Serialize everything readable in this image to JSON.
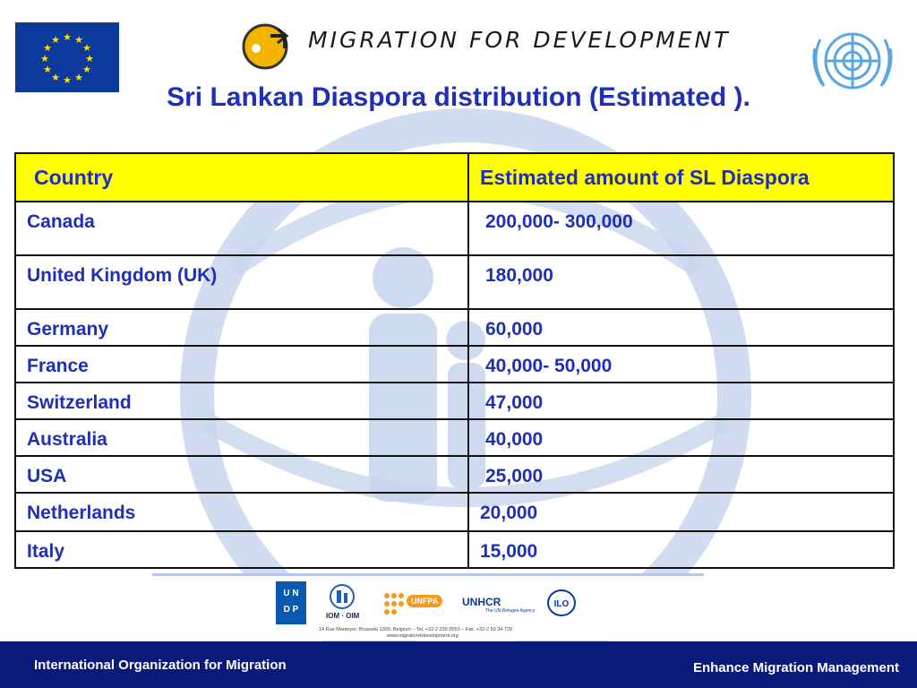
{
  "header": {
    "logo_text": "MIGRATION FOR DEVELOPMENT"
  },
  "title": "Sri Lankan Diaspora distribution (Estimated ).",
  "table": {
    "headers": [
      "Country",
      "Estimated amount of SL Diaspora"
    ],
    "rows": [
      [
        "Canada",
        "200,000- 300,000"
      ],
      [
        "United Kingdom (UK)",
        "180,000"
      ],
      [
        "Germany",
        "60,000"
      ],
      [
        "France",
        "40,000- 50,000"
      ],
      [
        "Switzerland",
        "47,000"
      ],
      [
        "Australia",
        "40,000"
      ],
      [
        "USA",
        "25,000"
      ],
      [
        "Netherlands",
        "20,000"
      ],
      [
        "Italy",
        "15,000"
      ]
    ]
  },
  "partners": {
    "undp": "UNDP",
    "iom": "IOM · OIM",
    "unfpa": "UNFPA",
    "unhcr": "UNHCR",
    "unhcr_sub": "The UN Refugee Agency",
    "address": "14 Rue Montoyer, Brussels 1000, Belgium – Tel. +32-2 235 0553 – Fax. +32-2 50 34 729",
    "website": "www.migration4development.org"
  },
  "footer": {
    "left": "International Organization for Migration",
    "right": "Enhance Migration Management"
  },
  "colors": {
    "title_blue": "#1f2fb8",
    "header_yellow": "#ffff00",
    "footer_navy": "#0a1a7a"
  }
}
